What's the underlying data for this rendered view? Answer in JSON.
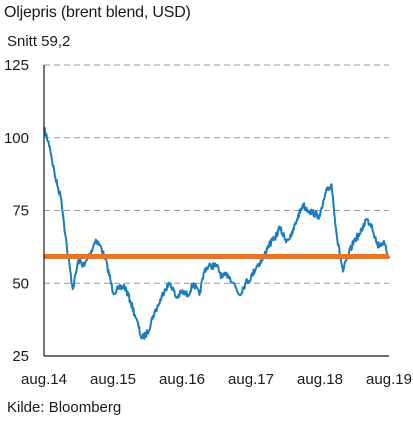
{
  "title": "Oljepris (brent blend, USD)",
  "subtitle": "Snitt 59,2",
  "source": "Kilde: Bloomberg",
  "colors": {
    "series": "#1b7dbb",
    "average": "#e8742a",
    "grid": "#9a9a9a",
    "axis": "#1a1a1a"
  },
  "chart_data": {
    "type": "line",
    "title": "Oljepris (brent blend, USD)",
    "xlabel": "",
    "ylabel": "",
    "ylim": [
      25,
      125
    ],
    "xlim": [
      "2014-08",
      "2019-08"
    ],
    "yticks": [
      25,
      50,
      75,
      100,
      125
    ],
    "ytick_labels": [
      "25",
      "50",
      "75",
      "100",
      "125"
    ],
    "xticks": [
      "2014-08",
      "2015-08",
      "2016-08",
      "2017-08",
      "2018-08",
      "2019-08"
    ],
    "xtick_labels": [
      "aug.14",
      "aug.15",
      "aug.16",
      "aug.17",
      "aug.18",
      "aug.19"
    ],
    "grid": "horizontal dashed",
    "average": {
      "label": "Snitt 59,2",
      "value": 59.2
    },
    "series": [
      {
        "x": [
          "2014-08",
          "2014-09",
          "2014-10",
          "2014-11",
          "2014-12",
          "2015-01",
          "2015-02",
          "2015-03",
          "2015-04",
          "2015-05",
          "2015-06",
          "2015-07",
          "2015-08",
          "2015-09",
          "2015-10",
          "2015-11",
          "2015-12",
          "2016-01",
          "2016-02",
          "2016-03",
          "2016-04",
          "2016-05",
          "2016-06",
          "2016-07",
          "2016-08",
          "2016-09",
          "2016-10",
          "2016-11",
          "2016-12",
          "2017-01",
          "2017-02",
          "2017-03",
          "2017-04",
          "2017-05",
          "2017-06",
          "2017-07",
          "2017-08",
          "2017-09",
          "2017-10",
          "2017-11",
          "2017-12",
          "2018-01",
          "2018-02",
          "2018-03",
          "2018-04",
          "2018-05",
          "2018-06",
          "2018-07",
          "2018-08",
          "2018-09",
          "2018-10",
          "2018-11",
          "2018-12",
          "2019-01",
          "2019-02",
          "2019-03",
          "2019-04",
          "2019-05",
          "2019-06",
          "2019-07",
          "2019-08"
        ],
        "values": [
          103,
          97,
          86,
          79,
          62,
          48,
          58,
          56,
          60,
          65,
          62,
          56,
          47,
          48,
          49,
          44,
          38,
          31,
          33,
          39,
          43,
          48,
          50,
          45,
          47,
          46,
          50,
          46,
          55,
          56,
          56,
          52,
          53,
          50,
          46,
          50,
          52,
          56,
          58,
          63,
          65,
          69,
          65,
          66,
          72,
          77,
          75,
          74,
          73,
          81,
          84,
          65,
          54,
          60,
          65,
          67,
          72,
          70,
          63,
          64,
          59
        ]
      }
    ]
  }
}
